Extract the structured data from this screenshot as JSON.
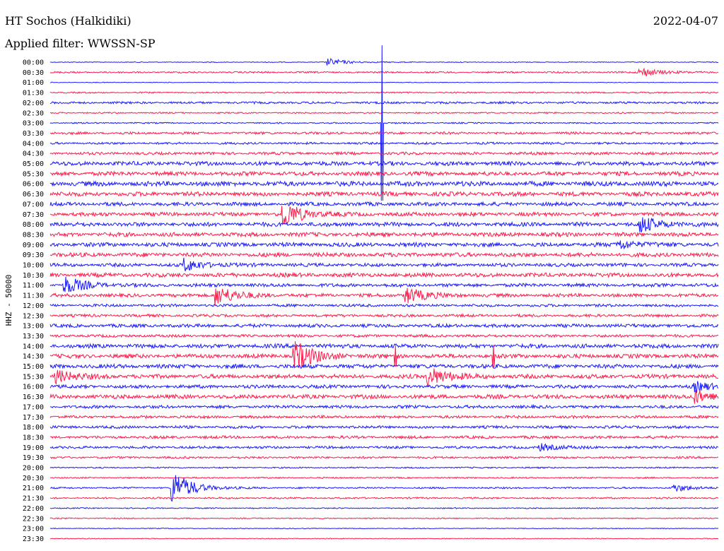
{
  "header": {
    "station": "HT Sochos (Halkidiki)",
    "date": "2022-04-07",
    "filter_label": "Applied filter: WWSSN-SP"
  },
  "chart_data": {
    "type": "line",
    "title": "HT Sochos (Halkidiki)",
    "ylabel": "HHZ - 50000",
    "colors": {
      "even": "#1a1aff",
      "odd": "#ff1a4a"
    },
    "rows": [
      "00:00",
      "00:30",
      "01:00",
      "01:30",
      "02:00",
      "02:30",
      "03:00",
      "03:30",
      "04:00",
      "04:30",
      "05:00",
      "05:30",
      "06:00",
      "06:30",
      "07:00",
      "07:30",
      "08:00",
      "08:30",
      "09:00",
      "09:30",
      "10:00",
      "10:30",
      "11:00",
      "11:30",
      "12:00",
      "12:30",
      "13:00",
      "13:30",
      "14:00",
      "14:30",
      "15:00",
      "15:30",
      "16:00",
      "16:30",
      "17:00",
      "17:30",
      "18:00",
      "18:30",
      "19:00",
      "19:30",
      "20:00",
      "20:30",
      "21:00",
      "21:30",
      "22:00",
      "22:30",
      "23:00",
      "23:30"
    ],
    "row_minutes": 30,
    "noise_levels": [
      0.6,
      1.2,
      0.5,
      1.0,
      1.6,
      1.0,
      1.0,
      1.8,
      1.6,
      2.0,
      3.0,
      3.0,
      3.5,
      3.2,
      2.8,
      2.8,
      3.0,
      3.0,
      3.0,
      3.0,
      2.5,
      3.0,
      2.5,
      2.5,
      2.0,
      2.0,
      2.5,
      2.0,
      3.0,
      3.0,
      3.0,
      3.0,
      2.5,
      3.0,
      2.2,
      2.0,
      2.0,
      2.0,
      1.8,
      1.5,
      1.0,
      1.0,
      1.2,
      1.2,
      0.8,
      0.8,
      0.6,
      0.6
    ],
    "events": [
      {
        "row": "00:00",
        "minute": 12.5,
        "amp": 5
      },
      {
        "row": "00:30",
        "minute": 26.5,
        "amp": 7
      },
      {
        "row": "07:30",
        "minute": 10.5,
        "amp": 18
      },
      {
        "row": "08:00",
        "minute": 26.5,
        "amp": 12
      },
      {
        "row": "09:00",
        "minute": 25.5,
        "amp": 7
      },
      {
        "row": "10:00",
        "minute": 6.0,
        "amp": 9
      },
      {
        "row": "11:00",
        "minute": 0.7,
        "amp": 12
      },
      {
        "row": "11:30",
        "minute": 7.5,
        "amp": 14
      },
      {
        "row": "11:30",
        "minute": 16.0,
        "amp": 12
      },
      {
        "row": "14:30",
        "minute": 11.0,
        "amp": 22
      },
      {
        "row": "15:30",
        "minute": 0.3,
        "amp": 9
      },
      {
        "row": "15:30",
        "minute": 17.0,
        "amp": 14
      },
      {
        "row": "16:00",
        "minute": 29.0,
        "amp": 6
      },
      {
        "row": "16:30",
        "minute": 29.0,
        "amp": 9
      },
      {
        "row": "19:00",
        "minute": 22.0,
        "amp": 5
      },
      {
        "row": "21:00",
        "minute": 5.5,
        "amp": 25
      },
      {
        "row": "21:00",
        "minute": 28.0,
        "amp": 5
      }
    ],
    "spikes": [
      {
        "row": "03:00",
        "minute": 14.9,
        "amp": 110
      },
      {
        "row": "14:30",
        "minute": 15.5,
        "amp": 15
      },
      {
        "row": "14:30",
        "minute": 19.9,
        "amp": 16
      }
    ]
  }
}
